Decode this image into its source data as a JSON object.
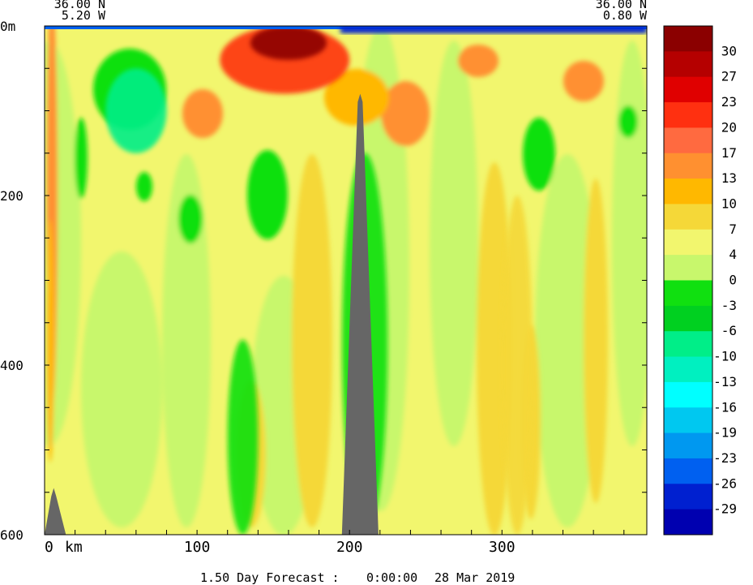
{
  "chart_data": {
    "type": "heatmap",
    "title": "",
    "corner_left": {
      "lat": "36.00 N",
      "lon": "5.20 W"
    },
    "corner_right": {
      "lat": "36.00 N",
      "lon": "0.80 W"
    },
    "ylabel_top": "0m",
    "x_unit_label": "km",
    "x_range": [
      0,
      395
    ],
    "y_range": [
      0,
      600
    ],
    "y_inverted": true,
    "x_ticks": [
      {
        "value": 0,
        "label": "0"
      },
      {
        "value": 100,
        "label": "100"
      },
      {
        "value": 200,
        "label": "200"
      },
      {
        "value": 300,
        "label": "300"
      }
    ],
    "y_ticks": [
      {
        "value": 200,
        "label": "200"
      },
      {
        "value": 400,
        "label": "400"
      },
      {
        "value": 600,
        "label": "600"
      }
    ],
    "colorbar": {
      "labels": [
        "30",
        "27",
        "23",
        "20",
        "17",
        "13",
        "10",
        "7",
        "4",
        "0",
        "-3",
        "-6",
        "-10",
        "-13",
        "-16",
        "-19",
        "-23",
        "-26",
        "-29"
      ],
      "colors": [
        "#8B0000",
        "#B50000",
        "#E00000",
        "#FF3010",
        "#FF6A40",
        "#FF9030",
        "#FFB800",
        "#F5D838",
        "#F2F66E",
        "#C8F76C",
        "#10E010",
        "#00D020",
        "#00EE88",
        "#00F0C0",
        "#00FFFF",
        "#00C8F0",
        "#0098F0",
        "#0060F0",
        "#0020D0",
        "#0000B0"
      ]
    },
    "base_color": "#F2F66E",
    "contours": [
      {
        "level": 4,
        "color": "#C8F76C",
        "x_range": [
          0,
          395
        ],
        "y_range": [
          0,
          600
        ]
      },
      {
        "level": 7,
        "color": "#F5D838",
        "x_range": [
          300,
          320
        ],
        "y_range": [
          200,
          600
        ]
      },
      {
        "level": -3,
        "color": "#10E010",
        "x_range": [
          195,
          225
        ],
        "y_range": [
          150,
          600
        ]
      },
      {
        "level": -3,
        "color": "#10E010",
        "x_range": [
          120,
          140
        ],
        "y_range": [
          370,
          600
        ]
      },
      {
        "level": 20,
        "color": "#FF3010",
        "x_range": [
          115,
          200
        ],
        "y_range": [
          0,
          80
        ]
      },
      {
        "level": 30,
        "color": "#8B0000",
        "x_range": [
          135,
          185
        ],
        "y_range": [
          0,
          40
        ]
      },
      {
        "level": -10,
        "color": "#00EE88",
        "x_range": [
          40,
          80
        ],
        "y_range": [
          50,
          150
        ]
      }
    ],
    "bathymetry": {
      "color": "#666666",
      "seamounts": [
        {
          "x_peak": 207,
          "depth_peak": 80,
          "x_left": 195,
          "x_right": 219
        },
        {
          "x_peak": 6,
          "depth_peak": 545,
          "x_left": 0,
          "x_right": 14
        }
      ]
    }
  },
  "footer": {
    "forecast": "1.50 Day Forecast :",
    "time": "0:00:00",
    "date": "28 Mar 2019"
  }
}
